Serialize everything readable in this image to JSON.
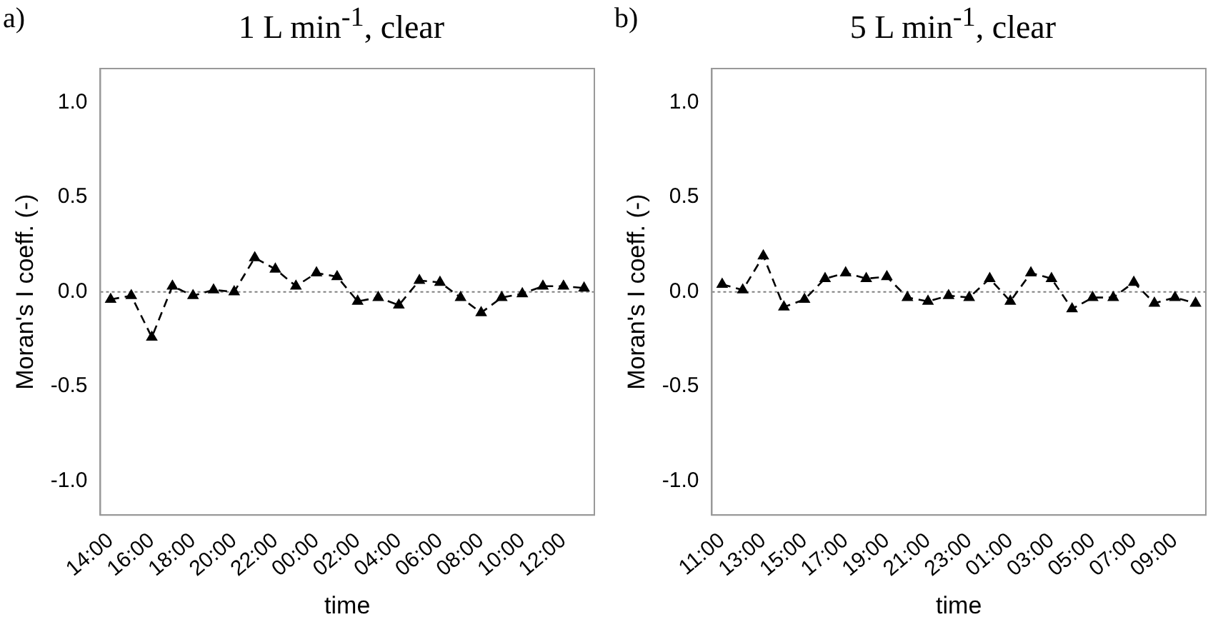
{
  "chart_data": [
    {
      "type": "line",
      "title": "1 L min$^{-1}$, clear",
      "annotations": [
        "a)"
      ],
      "xlabel": "time",
      "ylabel": "Moran's I coeff. (-)",
      "categories": [
        "14:00",
        null,
        "16:00",
        null,
        "18:00",
        null,
        "20:00",
        null,
        "22:00",
        null,
        "00:00",
        null,
        "02:00",
        null,
        "04:00",
        null,
        "06:00",
        null,
        "08:00",
        null,
        "10:00",
        null,
        "12:00",
        null
      ],
      "series": [
        {
          "color": "#000000",
          "values": [
            -0.04,
            -0.02,
            -0.24,
            0.03,
            -0.02,
            0.01,
            0.0,
            0.18,
            0.12,
            0.03,
            0.1,
            0.08,
            -0.05,
            -0.03,
            -0.07,
            0.06,
            0.05,
            -0.03,
            -0.11,
            -0.03,
            -0.01,
            0.03,
            0.03,
            0.02
          ]
        }
      ],
      "ylim": [
        -1.18,
        1.18
      ],
      "yticks": [
        {
          "value": -1,
          "label": "-1.0"
        },
        {
          "value": -0.5,
          "label": "-0.5"
        },
        {
          "value": 0,
          "label": "0.0"
        },
        {
          "value": 0.5,
          "label": "0.5"
        },
        {
          "value": 1,
          "label": "1.0"
        }
      ],
      "ref_lines": [
        {
          "axis": "y",
          "value": 0,
          "label": null,
          "color": "#808080",
          "line_style": "dotted"
        }
      ],
      "marker": "triangle",
      "line_style": "dashed",
      "grid": false,
      "legend": false
    },
    {
      "type": "line",
      "title": "5 L min$^{-1}$, clear",
      "annotations": [
        "b)"
      ],
      "xlabel": "time",
      "ylabel": "Moran's I coeff. (-)",
      "categories": [
        "11:00",
        null,
        "13:00",
        null,
        "15:00",
        null,
        "17:00",
        null,
        "19:00",
        null,
        "21:00",
        null,
        "23:00",
        null,
        "01:00",
        null,
        "03:00",
        null,
        "05:00",
        null,
        "07:00",
        null,
        "09:00",
        null
      ],
      "series": [
        {
          "color": "#000000",
          "values": [
            0.04,
            0.01,
            0.19,
            -0.08,
            -0.04,
            0.07,
            0.1,
            0.07,
            0.08,
            -0.03,
            -0.05,
            -0.02,
            -0.03,
            0.07,
            -0.05,
            0.1,
            0.07,
            -0.09,
            -0.03,
            -0.03,
            0.05,
            -0.06,
            -0.03,
            -0.06
          ]
        }
      ],
      "ylim": [
        -1.18,
        1.18
      ],
      "yticks": [
        {
          "value": -1,
          "label": "-1.0"
        },
        {
          "value": -0.5,
          "label": "-0.5"
        },
        {
          "value": 0,
          "label": "0.0"
        },
        {
          "value": 0.5,
          "label": "0.5"
        },
        {
          "value": 1,
          "label": "1.0"
        }
      ],
      "ref_lines": [
        {
          "axis": "y",
          "value": 0,
          "label": null,
          "color": "#808080",
          "line_style": "dotted"
        }
      ],
      "marker": "triangle",
      "line_style": "dashed",
      "grid": false,
      "legend": false
    }
  ]
}
